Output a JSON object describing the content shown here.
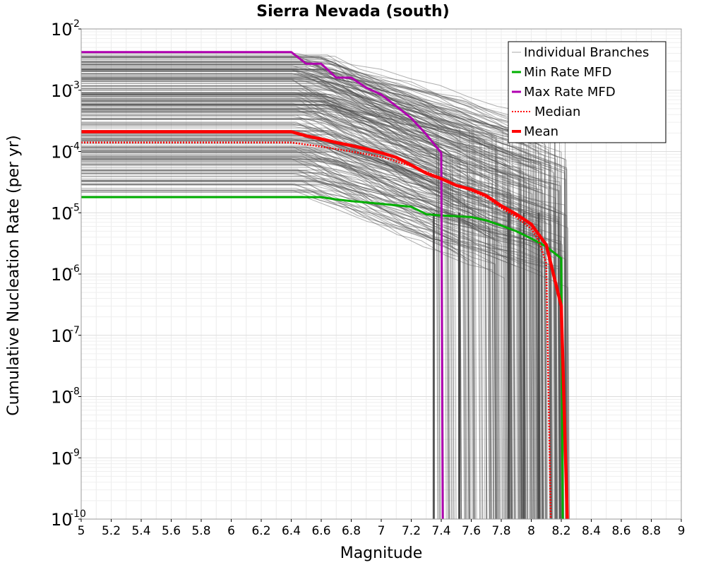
{
  "chart_data": {
    "type": "line",
    "title": "Sierra Nevada (south)",
    "xlabel": "Magnitude",
    "ylabel": "Cumulative Nucleation Rate (per yr)",
    "xlim": [
      5,
      9
    ],
    "ylim": [
      1e-10,
      0.01
    ],
    "yscale": "log",
    "grid": true,
    "legend_position": "top-right",
    "xticks": [
      "5",
      "5.2",
      "5.4",
      "5.6",
      "5.8",
      "6",
      "6.2",
      "6.4",
      "6.6",
      "6.8",
      "7",
      "7.2",
      "7.4",
      "7.6",
      "7.8",
      "8",
      "8.2",
      "8.4",
      "8.6",
      "8.8",
      "9"
    ],
    "yticks": [
      {
        "base": "10",
        "exp": "-2",
        "value": 0.01
      },
      {
        "base": "10",
        "exp": "-3",
        "value": 0.001
      },
      {
        "base": "10",
        "exp": "-4",
        "value": 0.0001
      },
      {
        "base": "10",
        "exp": "-5",
        "value": 1e-05
      },
      {
        "base": "10",
        "exp": "-6",
        "value": 1e-06
      },
      {
        "base": "10",
        "exp": "-7",
        "value": 1e-07
      },
      {
        "base": "10",
        "exp": "-8",
        "value": 1e-08
      },
      {
        "base": "10",
        "exp": "-9",
        "value": 1e-09
      },
      {
        "base": "10",
        "exp": "-10",
        "value": 1e-10
      }
    ],
    "series": [
      {
        "name": "Individual Branches",
        "color": "#505050",
        "style": "thin",
        "branch_count": 260,
        "rate_range": [
          1.8e-05,
          0.0042
        ],
        "max_mag_range": [
          7.3,
          8.25
        ]
      },
      {
        "name": "Min Rate MFD",
        "color": "#00b000",
        "style": "solid",
        "points": [
          [
            5,
            1.8e-05
          ],
          [
            6.4,
            1.8e-05
          ],
          [
            6.6,
            1.8e-05
          ],
          [
            6.7,
            1.65e-05
          ],
          [
            6.8,
            1.55e-05
          ],
          [
            7.0,
            1.4e-05
          ],
          [
            7.2,
            1.25e-05
          ],
          [
            7.3,
            9.5e-06
          ],
          [
            7.4,
            9e-06
          ],
          [
            7.5,
            8.8e-06
          ],
          [
            7.6,
            8.5e-06
          ],
          [
            7.7,
            7.5e-06
          ],
          [
            7.8,
            6.2e-06
          ],
          [
            7.9,
            5e-06
          ],
          [
            8.0,
            3.8e-06
          ],
          [
            8.1,
            2.8e-06
          ],
          [
            8.2,
            1.8e-06
          ],
          [
            8.21,
            1e-10
          ]
        ]
      },
      {
        "name": "Max Rate MFD",
        "color": "#b000b0",
        "style": "solid",
        "points": [
          [
            5,
            0.0042
          ],
          [
            6.4,
            0.0042
          ],
          [
            6.5,
            0.0027
          ],
          [
            6.6,
            0.0027
          ],
          [
            6.7,
            0.0016
          ],
          [
            6.8,
            0.0016
          ],
          [
            6.9,
            0.0011
          ],
          [
            7.0,
            0.00085
          ],
          [
            7.1,
            0.00055
          ],
          [
            7.2,
            0.00035
          ],
          [
            7.3,
            0.00019
          ],
          [
            7.4,
            9.5e-05
          ],
          [
            7.41,
            1e-10
          ]
        ]
      },
      {
        "name": "Median",
        "color": "#ff0000",
        "style": "dotted",
        "points": [
          [
            5,
            0.00014
          ],
          [
            6.4,
            0.00014
          ],
          [
            6.6,
            0.00012
          ],
          [
            6.8,
            0.0001
          ],
          [
            7.0,
            8.2e-05
          ],
          [
            7.2,
            5.8e-05
          ],
          [
            7.4,
            3.7e-05
          ],
          [
            7.5,
            2.8e-05
          ],
          [
            7.6,
            2.3e-05
          ],
          [
            7.7,
            1.8e-05
          ],
          [
            7.8,
            1.2e-05
          ],
          [
            7.9,
            8.5e-06
          ],
          [
            8.0,
            5.5e-06
          ],
          [
            8.05,
            3.5e-06
          ],
          [
            8.1,
            1.5e-06
          ],
          [
            8.13,
            1e-10
          ]
        ]
      },
      {
        "name": "Mean",
        "color": "#ff0000",
        "style": "bold",
        "points": [
          [
            5,
            0.00021
          ],
          [
            6.4,
            0.00021
          ],
          [
            6.5,
            0.00018
          ],
          [
            6.6,
            0.00016
          ],
          [
            6.7,
            0.00014
          ],
          [
            6.8,
            0.000125
          ],
          [
            6.9,
            0.00011
          ],
          [
            7.0,
            9.5e-05
          ],
          [
            7.1,
            8e-05
          ],
          [
            7.2,
            6e-05
          ],
          [
            7.3,
            4.4e-05
          ],
          [
            7.4,
            3.6e-05
          ],
          [
            7.5,
            2.8e-05
          ],
          [
            7.6,
            2.4e-05
          ],
          [
            7.7,
            1.9e-05
          ],
          [
            7.8,
            1.3e-05
          ],
          [
            7.9,
            9.5e-06
          ],
          [
            8.0,
            6.5e-06
          ],
          [
            8.1,
            3e-06
          ],
          [
            8.2,
            3e-07
          ],
          [
            8.24,
            1e-10
          ]
        ]
      }
    ]
  }
}
